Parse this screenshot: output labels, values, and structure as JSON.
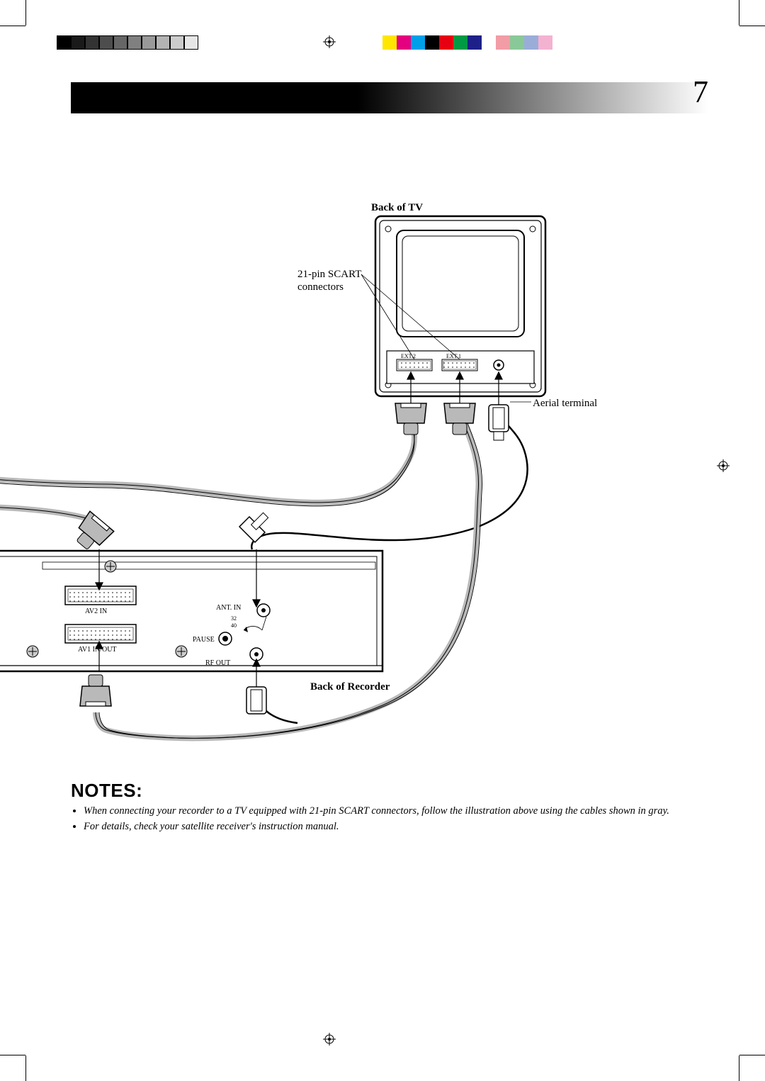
{
  "page": {
    "number": "7",
    "number_fontsize": 44
  },
  "printer_marks": {
    "gray_bar_colors": [
      "#000000",
      "#1a1a1a",
      "#333333",
      "#4d4d4d",
      "#666666",
      "#808080",
      "#999999",
      "#b3b3b3",
      "#cccccc",
      "#e6e6e6"
    ],
    "cmyk_bar_colors": [
      "#ffe600",
      "#e4007f",
      "#00a0e9",
      "#000000",
      "#e60012",
      "#009944",
      "#1d2088",
      "#ffffff",
      "#f29ca6",
      "#89c997",
      "#9aadd9",
      "#f4b2d1"
    ]
  },
  "diagram": {
    "tv": {
      "title": "Back of TV",
      "ext2": "EXT.2",
      "ext1": "EXT.1"
    },
    "scart_label": "21-pin SCART\nconnectors",
    "aerial_label": "Aerial terminal",
    "recorder": {
      "title": "Back of Recorder",
      "av2": "AV2  IN",
      "av1": "AV1  IN/OUT",
      "ant_in": "ANT. IN",
      "pause": "PAUSE",
      "rf_out": "RF OUT",
      "ch32": "32",
      "ch40": "40"
    }
  },
  "notes": {
    "heading": "NOTES:",
    "items": [
      "When connecting your recorder to a TV equipped with 21-pin SCART connectors, follow the illustration above using the cables shown in gray.",
      "For details, check your satellite receiver's instruction manual."
    ]
  },
  "style": {
    "label_fontsize": 15,
    "small_label_fontsize": 9,
    "tiny_label_fontsize": 8,
    "stroke": "#000000",
    "cable_gray": "#b9b9b9",
    "screw_gray": "#cccccc"
  }
}
